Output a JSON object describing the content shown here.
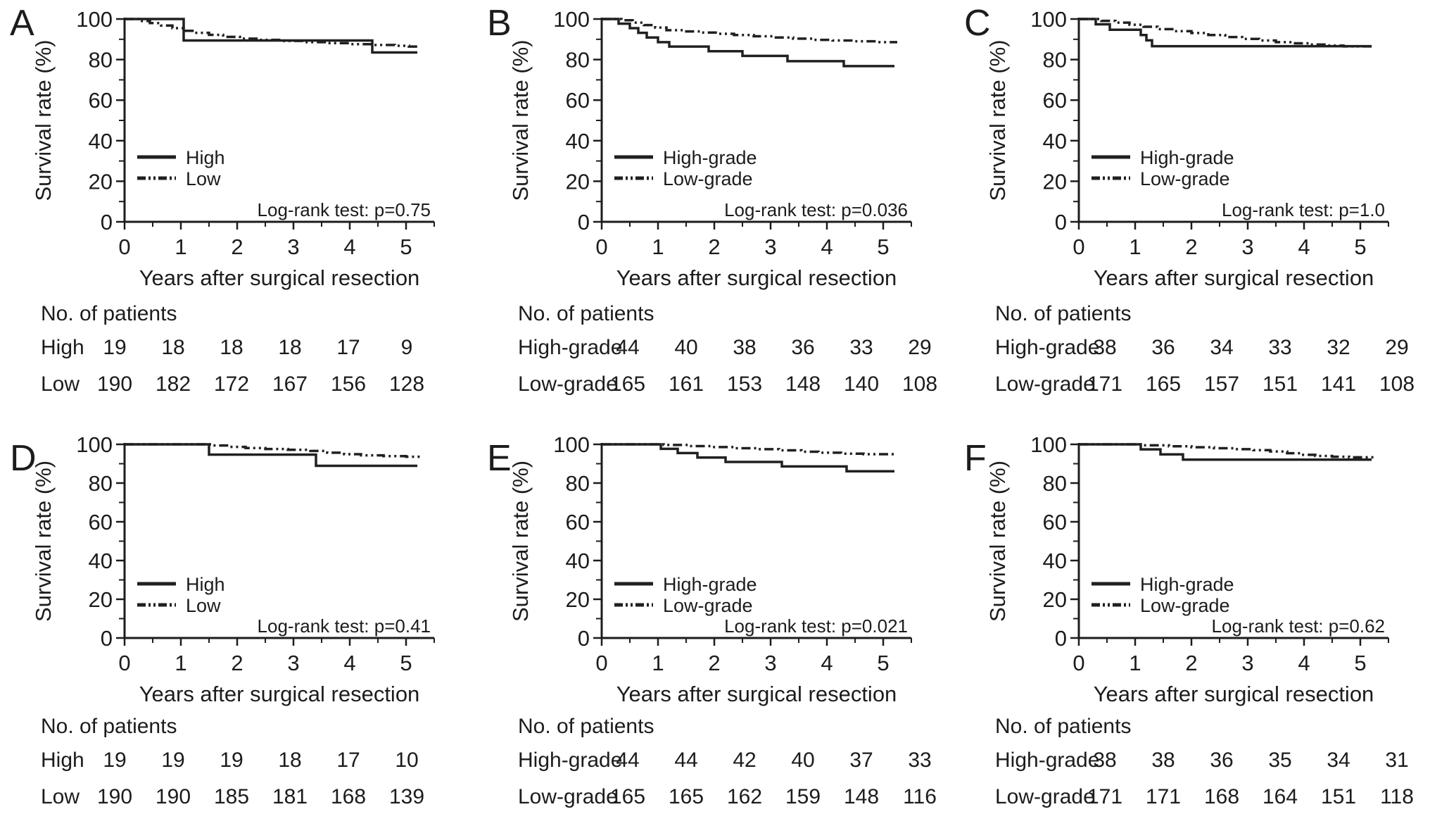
{
  "figure": {
    "background_color": "#ffffff",
    "ink_color": "#1c1c1c"
  },
  "chart_data": [
    {
      "type": "line",
      "panel_label": "A",
      "ylabel": "Survival rate (%)",
      "xlabel": "Years after surgical resection",
      "ylim": [
        0,
        100
      ],
      "xlim": [
        0,
        5.5
      ],
      "yticks": [
        0,
        20,
        40,
        60,
        80,
        100
      ],
      "xticks": [
        0,
        1,
        2,
        3,
        4,
        5
      ],
      "grid": false,
      "legend_position": "mid-left",
      "annotation": "Log-rank test: p=0.75",
      "p_value": "0.75",
      "series": [
        {
          "name": "High",
          "line_style": "solid",
          "steps": [
            [
              0,
              100
            ],
            [
              1.05,
              89.4
            ],
            [
              4.4,
              83.5
            ]
          ],
          "end_x": 5.2
        },
        {
          "name": "Low",
          "line_style": "dash-dot-dot",
          "steps": [
            [
              0,
              100
            ],
            [
              0.25,
              99
            ],
            [
              0.45,
              98
            ],
            [
              0.65,
              96.8
            ],
            [
              0.85,
              95.5
            ],
            [
              1.05,
              94.2
            ],
            [
              1.25,
              93.2
            ],
            [
              1.5,
              92.2
            ],
            [
              1.75,
              91.2
            ],
            [
              2.05,
              90.3
            ],
            [
              2.4,
              89.7
            ],
            [
              2.8,
              89.2
            ],
            [
              3.2,
              88.6
            ],
            [
              3.6,
              88.1
            ],
            [
              4.0,
              87.6
            ],
            [
              4.4,
              87.2
            ],
            [
              4.8,
              86.8
            ],
            [
              5.05,
              86.4
            ]
          ],
          "end_x": 5.25
        }
      ],
      "at_risk_table": {
        "title": "No. of patients",
        "rows": [
          {
            "label": "High",
            "counts": [
              19,
              18,
              18,
              18,
              17,
              9
            ]
          },
          {
            "label": "Low",
            "counts": [
              190,
              182,
              172,
              167,
              156,
              128
            ]
          }
        ]
      }
    },
    {
      "type": "line",
      "panel_label": "B",
      "ylabel": "Survival rate (%)",
      "xlabel": "Years after surgical resection",
      "ylim": [
        0,
        100
      ],
      "xlim": [
        0,
        5.5
      ],
      "yticks": [
        0,
        20,
        40,
        60,
        80,
        100
      ],
      "xticks": [
        0,
        1,
        2,
        3,
        4,
        5
      ],
      "grid": false,
      "legend_position": "mid-left",
      "annotation": "Log-rank test: p=0.036",
      "p_value": "0.036",
      "series": [
        {
          "name": "High-grade",
          "line_style": "solid",
          "steps": [
            [
              0,
              100
            ],
            [
              0.3,
              97.7
            ],
            [
              0.5,
              95.5
            ],
            [
              0.65,
              93.2
            ],
            [
              0.8,
              90.9
            ],
            [
              1.0,
              88.6
            ],
            [
              1.2,
              86.4
            ],
            [
              1.9,
              84.1
            ],
            [
              2.5,
              81.8
            ],
            [
              3.3,
              79.2
            ],
            [
              4.3,
              76.8
            ]
          ],
          "end_x": 5.2
        },
        {
          "name": "Low-grade",
          "line_style": "dash-dot-dot",
          "steps": [
            [
              0,
              100
            ],
            [
              0.35,
              99.4
            ],
            [
              0.55,
              98.2
            ],
            [
              0.75,
              97
            ],
            [
              0.95,
              95.8
            ],
            [
              1.15,
              94.5
            ],
            [
              1.45,
              93.9
            ],
            [
              1.75,
              93.3
            ],
            [
              2.05,
              92.7
            ],
            [
              2.35,
              92.1
            ],
            [
              2.7,
              91.5
            ],
            [
              3.05,
              90.9
            ],
            [
              3.4,
              90.3
            ],
            [
              3.75,
              89.7
            ],
            [
              4.1,
              89.4
            ],
            [
              4.5,
              89
            ],
            [
              4.9,
              88.6
            ]
          ],
          "end_x": 5.25
        }
      ],
      "at_risk_table": {
        "title": "No. of patients",
        "rows": [
          {
            "label": "High-grade",
            "counts": [
              44,
              40,
              38,
              36,
              33,
              29
            ]
          },
          {
            "label": "Low-grade",
            "counts": [
              165,
              161,
              153,
              148,
              140,
              108
            ]
          }
        ]
      }
    },
    {
      "type": "line",
      "panel_label": "C",
      "ylabel": "Survival rate (%)",
      "xlabel": "Years after surgical resection",
      "ylim": [
        0,
        100
      ],
      "xlim": [
        0,
        5.5
      ],
      "yticks": [
        0,
        20,
        40,
        60,
        80,
        100
      ],
      "xticks": [
        0,
        1,
        2,
        3,
        4,
        5
      ],
      "grid": false,
      "legend_position": "mid-left",
      "annotation": "Log-rank test: p=1.0",
      "p_value": "1.0",
      "series": [
        {
          "name": "High-grade",
          "line_style": "solid",
          "steps": [
            [
              0,
              100
            ],
            [
              0.3,
              97.4
            ],
            [
              0.55,
              94.7
            ],
            [
              1.1,
              92.1
            ],
            [
              1.2,
              89.5
            ],
            [
              1.3,
              86.6
            ]
          ],
          "end_x": 5.2
        },
        {
          "name": "Low-grade",
          "line_style": "dash-dot-dot",
          "steps": [
            [
              0,
              100
            ],
            [
              0.4,
              99.1
            ],
            [
              0.65,
              98.2
            ],
            [
              0.9,
              97.2
            ],
            [
              1.15,
              96.2
            ],
            [
              1.4,
              95
            ],
            [
              1.7,
              94
            ],
            [
              2.0,
              93.1
            ],
            [
              2.3,
              92.1
            ],
            [
              2.6,
              91.1
            ],
            [
              2.9,
              90.2
            ],
            [
              3.2,
              89.4
            ],
            [
              3.5,
              88.6
            ],
            [
              3.8,
              88
            ],
            [
              4.1,
              87.4
            ],
            [
              4.4,
              86.9
            ],
            [
              4.7,
              86.5
            ]
          ],
          "end_x": 5.25
        }
      ],
      "at_risk_table": {
        "title": "No. of patients",
        "rows": [
          {
            "label": "High-grade",
            "counts": [
              38,
              36,
              34,
              33,
              32,
              29
            ]
          },
          {
            "label": "Low-grade",
            "counts": [
              171,
              165,
              157,
              151,
              141,
              108
            ]
          }
        ]
      }
    },
    {
      "type": "line",
      "panel_label": "D",
      "ylabel": "Survival rate (%)",
      "xlabel": "Years after surgical resection",
      "ylim": [
        0,
        100
      ],
      "xlim": [
        0,
        5.5
      ],
      "yticks": [
        0,
        20,
        40,
        60,
        80,
        100
      ],
      "xticks": [
        0,
        1,
        2,
        3,
        4,
        5
      ],
      "grid": false,
      "legend_position": "mid-left",
      "annotation": "Log-rank test: p=0.41",
      "p_value": "0.41",
      "series": [
        {
          "name": "High",
          "line_style": "solid",
          "steps": [
            [
              0,
              100
            ],
            [
              1.5,
              94.7
            ],
            [
              3.4,
              88.9
            ]
          ],
          "end_x": 5.2
        },
        {
          "name": "Low",
          "line_style": "dash-dot-dot",
          "steps": [
            [
              0,
              100
            ],
            [
              1.55,
              99.4
            ],
            [
              1.85,
              98.7
            ],
            [
              2.15,
              98.1
            ],
            [
              2.5,
              97.6
            ],
            [
              2.9,
              97.2
            ],
            [
              3.3,
              96.6
            ],
            [
              3.6,
              95.7
            ],
            [
              3.9,
              94.9
            ],
            [
              4.2,
              94.3
            ],
            [
              4.6,
              93.9
            ],
            [
              5.0,
              93.6
            ]
          ],
          "end_x": 5.25
        }
      ],
      "at_risk_table": {
        "title": "No. of patients",
        "rows": [
          {
            "label": "High",
            "counts": [
              19,
              19,
              19,
              18,
              17,
              10
            ]
          },
          {
            "label": "Low",
            "counts": [
              190,
              190,
              185,
              181,
              168,
              139
            ]
          }
        ]
      }
    },
    {
      "type": "line",
      "panel_label": "E",
      "ylabel": "Survival rate (%)",
      "xlabel": "Years after surgical resection",
      "ylim": [
        0,
        100
      ],
      "xlim": [
        0,
        5.5
      ],
      "yticks": [
        0,
        20,
        40,
        60,
        80,
        100
      ],
      "xticks": [
        0,
        1,
        2,
        3,
        4,
        5
      ],
      "grid": false,
      "legend_position": "mid-left",
      "annotation": "Log-rank test: p=0.021",
      "p_value": "0.021",
      "series": [
        {
          "name": "High-grade",
          "line_style": "solid",
          "steps": [
            [
              0,
              100
            ],
            [
              1.05,
              97.7
            ],
            [
              1.35,
              95.5
            ],
            [
              1.7,
              93.2
            ],
            [
              2.2,
              90.9
            ],
            [
              3.2,
              88.6
            ],
            [
              4.35,
              86.1
            ]
          ],
          "end_x": 5.2
        },
        {
          "name": "Low-grade",
          "line_style": "dash-dot-dot",
          "steps": [
            [
              0,
              100
            ],
            [
              1.1,
              99.7
            ],
            [
              1.55,
              99.1
            ],
            [
              1.95,
              98.6
            ],
            [
              2.35,
              98
            ],
            [
              2.75,
              97.5
            ],
            [
              3.15,
              96.9
            ],
            [
              3.55,
              96.2
            ],
            [
              3.85,
              95.7
            ],
            [
              4.25,
              95.2
            ],
            [
              4.65,
              94.9
            ]
          ],
          "end_x": 5.25
        }
      ],
      "at_risk_table": {
        "title": "No. of patients",
        "rows": [
          {
            "label": "High-grade",
            "counts": [
              44,
              44,
              42,
              40,
              37,
              33
            ]
          },
          {
            "label": "Low-grade",
            "counts": [
              165,
              165,
              162,
              159,
              148,
              116
            ]
          }
        ]
      }
    },
    {
      "type": "line",
      "panel_label": "F",
      "ylabel": "Survival rate (%)",
      "xlabel": "Years after surgical resection",
      "ylim": [
        0,
        100
      ],
      "xlim": [
        0,
        5.5
      ],
      "yticks": [
        0,
        20,
        40,
        60,
        80,
        100
      ],
      "xticks": [
        0,
        1,
        2,
        3,
        4,
        5
      ],
      "grid": false,
      "legend_position": "mid-left",
      "annotation": "Log-rank test: p=0.62",
      "p_value": "0.62",
      "series": [
        {
          "name": "High-grade",
          "line_style": "solid",
          "steps": [
            [
              0,
              100
            ],
            [
              1.1,
              97.4
            ],
            [
              1.45,
              94.8
            ],
            [
              1.85,
              92.1
            ]
          ],
          "end_x": 5.2
        },
        {
          "name": "Low-grade",
          "line_style": "dash-dot-dot",
          "steps": [
            [
              0,
              100
            ],
            [
              1.15,
              99.5
            ],
            [
              1.6,
              99
            ],
            [
              2.0,
              98.5
            ],
            [
              2.4,
              98
            ],
            [
              2.75,
              97.5
            ],
            [
              3.1,
              97
            ],
            [
              3.4,
              96.3
            ],
            [
              3.7,
              95.4
            ],
            [
              3.95,
              94.6
            ],
            [
              4.2,
              94
            ],
            [
              4.5,
              93.6
            ],
            [
              4.8,
              93.3
            ]
          ],
          "end_x": 5.25
        }
      ],
      "at_risk_table": {
        "title": "No. of patients",
        "rows": [
          {
            "label": "High-grade",
            "counts": [
              38,
              38,
              36,
              35,
              34,
              31
            ]
          },
          {
            "label": "Low-grade",
            "counts": [
              171,
              171,
              168,
              164,
              151,
              118
            ]
          }
        ]
      }
    }
  ]
}
